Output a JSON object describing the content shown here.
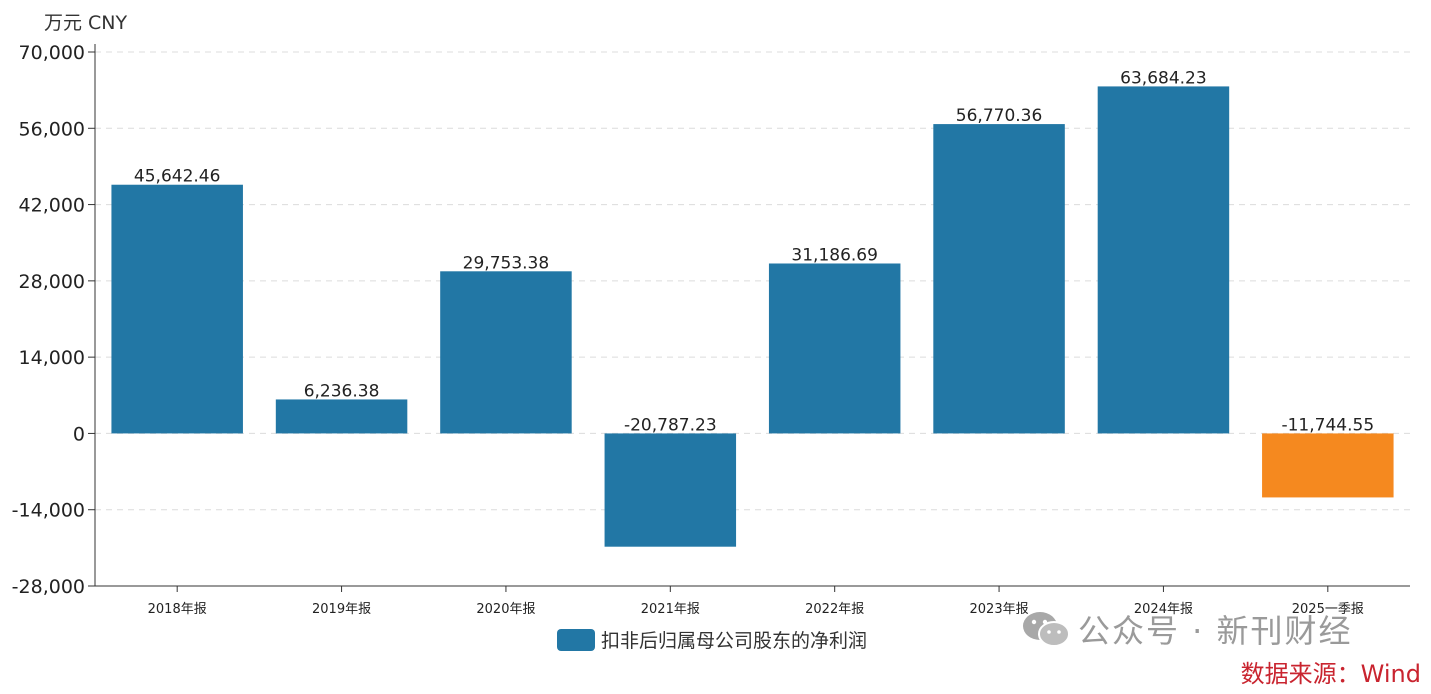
{
  "unit_label": "万元  CNY",
  "watermark_text": "公众号 · 新刊财经",
  "source_label": "数据来源：Wind",
  "chart_data": {
    "type": "bar",
    "title": "",
    "xlabel": "",
    "ylabel": "万元  CNY",
    "categories": [
      "2018年报",
      "2019年报",
      "2020年报",
      "2021年报",
      "2022年报",
      "2023年报",
      "2024年报",
      "2025一季报"
    ],
    "series": [
      {
        "name": "扣非后归属母公司股东的净利润",
        "values": [
          45642.46,
          6236.38,
          29753.38,
          -20787.23,
          31186.69,
          56770.36,
          63684.23,
          -11744.55
        ],
        "labels": [
          "45,642.46",
          "6,236.38",
          "29,753.38",
          "-20,787.23",
          "31,186.69",
          "56,770.36",
          "63,684.23",
          "-11,744.55"
        ],
        "color": "#2277a5",
        "highlight_color": "#f5891f",
        "highlight_index": 7
      }
    ],
    "ylim": [
      -28000,
      70000
    ],
    "yticks": [
      70000,
      56000,
      42000,
      28000,
      14000,
      0,
      -14000,
      -28000
    ],
    "ytick_labels": [
      "70,000",
      "56,000",
      "42,000",
      "28,000",
      "14,000",
      "0",
      "-14,000",
      "-28,000"
    ],
    "grid": true,
    "legend_position": "bottom-center"
  }
}
